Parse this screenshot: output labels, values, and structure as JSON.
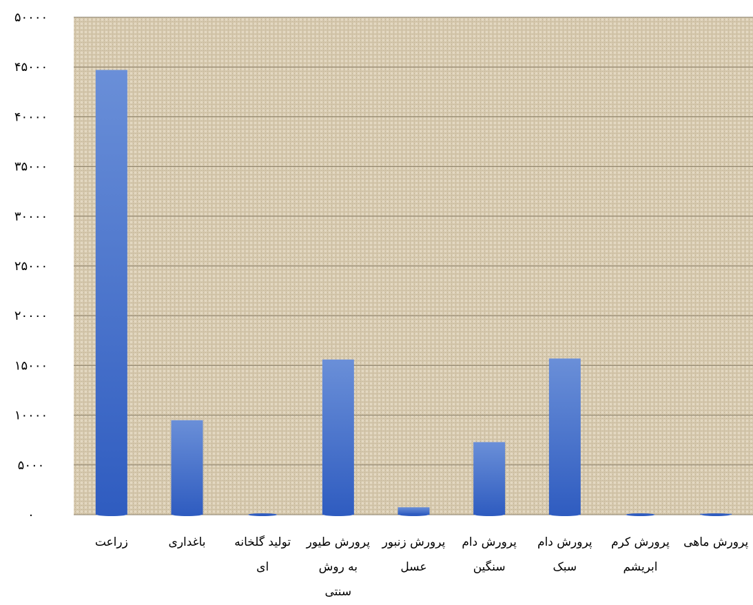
{
  "chart_data": {
    "type": "bar",
    "categories": [
      [
        "زراعت"
      ],
      [
        "باغداری"
      ],
      [
        "تولید گلخانه",
        "ای"
      ],
      [
        "پرورش طیور",
        "به روش",
        "سنتی"
      ],
      [
        "پرورش زنبور",
        "عسل"
      ],
      [
        "پرورش دام",
        "سنگین"
      ],
      [
        "پرورش دام",
        "سبک"
      ],
      [
        "پرورش کرم",
        "ابریشم"
      ],
      [
        "پرورش ماهی"
      ]
    ],
    "values": [
      44700,
      9500,
      0,
      15600,
      750,
      7300,
      15700,
      0,
      100
    ],
    "ylim": [
      0,
      50000
    ],
    "yticks": [
      0,
      5000,
      10000,
      15000,
      20000,
      25000,
      30000,
      35000,
      40000,
      45000,
      50000
    ],
    "ytick_labels": [
      "۰",
      "۵۰۰۰",
      "۱۰۰۰۰",
      "۱۵۰۰۰",
      "۲۰۰۰۰",
      "۲۵۰۰۰",
      "۳۰۰۰۰",
      "۳۵۰۰۰",
      "۴۰۰۰۰",
      "۴۵۰۰۰",
      "۵۰۰۰۰"
    ],
    "grid": true,
    "legend": "none",
    "colors": {
      "bar_top": "#6a8fd8",
      "bar_bottom": "#2f5cc0",
      "plot_bg": "#d9ccb2",
      "plot_bg_dark": "#b9aa8c",
      "grid": "#8a7f6a"
    }
  }
}
